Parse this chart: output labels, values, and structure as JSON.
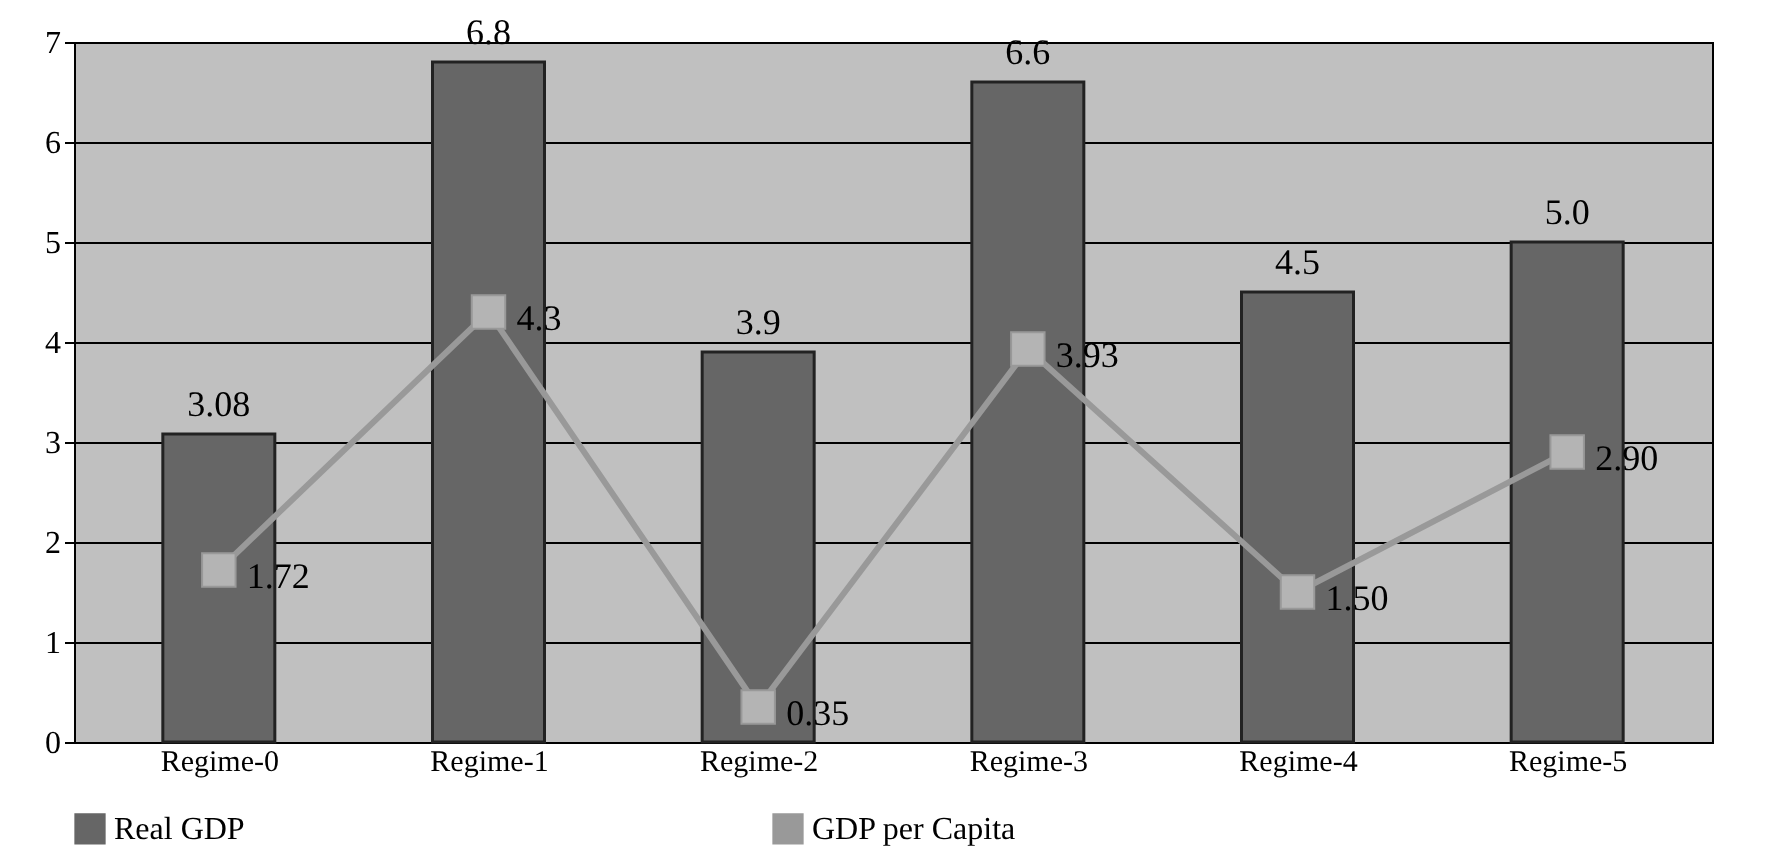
{
  "chart_data": {
    "type": "bar",
    "categories": [
      "Regime-0",
      "Regime-1",
      "Regime-2",
      "Regime-3",
      "Regime-4",
      "Regime-5"
    ],
    "series": [
      {
        "name": "Real GDP",
        "color": "#666666",
        "values": [
          3.08,
          6.8,
          3.9,
          6.6,
          4.5,
          5.0
        ],
        "value_labels": [
          "3.08",
          "6.8",
          "3.9",
          "6.6",
          "4.5",
          "5.0"
        ]
      },
      {
        "name": "GDP per Capita",
        "type": "line",
        "color": "#999999",
        "marker": "square",
        "line_style": "solid",
        "values": [
          1.72,
          4.3,
          0.35,
          3.93,
          1.5,
          2.9
        ],
        "value_labels": [
          "1.72",
          "4.3",
          "0.35",
          "3.93",
          "1.50",
          "2.90"
        ]
      }
    ],
    "ylim": [
      0,
      7
    ],
    "yticks": [
      0,
      1,
      2,
      3,
      4,
      5,
      6,
      7
    ],
    "grid": "y",
    "legend": "bottom"
  }
}
